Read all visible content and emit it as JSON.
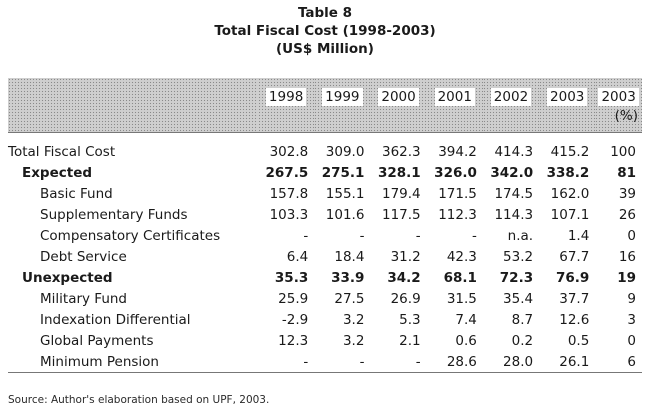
{
  "title": {
    "line1": "Table 8",
    "line2": "Total Fiscal Cost (1998-2003)",
    "line3": "(US$ Million)"
  },
  "columns": [
    "1998",
    "1999",
    "2000",
    "2001",
    "2002",
    "2003",
    "2003"
  ],
  "pct_unit": "(%)",
  "rows": [
    {
      "label": "Total Fiscal Cost",
      "values": [
        "302.8",
        "309.0",
        "362.3",
        "394.2",
        "414.3",
        "415.2",
        "100"
      ]
    },
    {
      "label": "Expected",
      "values": [
        "267.5",
        "275.1",
        "328.1",
        "326.0",
        "342.0",
        "338.2",
        "81"
      ]
    },
    {
      "label": "Basic Fund",
      "values": [
        "157.8",
        "155.1",
        "179.4",
        "171.5",
        "174.5",
        "162.0",
        "39"
      ]
    },
    {
      "label": "Supplementary Funds",
      "values": [
        "103.3",
        "101.6",
        "117.5",
        "112.3",
        "114.3",
        "107.1",
        "26"
      ]
    },
    {
      "label": "Compensatory Certificates",
      "values": [
        "-",
        "-",
        "-",
        "-",
        "n.a.",
        "1.4",
        "0"
      ]
    },
    {
      "label": "Debt Service",
      "values": [
        "6.4",
        "18.4",
        "31.2",
        "42.3",
        "53.2",
        "67.7",
        "16"
      ]
    },
    {
      "label": "Unexpected",
      "values": [
        "35.3",
        "33.9",
        "34.2",
        "68.1",
        "72.3",
        "76.9",
        "19"
      ]
    },
    {
      "label": "Military Fund",
      "values": [
        "25.9",
        "27.5",
        "26.9",
        "31.5",
        "35.4",
        "37.7",
        "9"
      ]
    },
    {
      "label": "Indexation Differential",
      "values": [
        "-2.9",
        "3.2",
        "5.3",
        "7.4",
        "8.7",
        "12.6",
        "3"
      ]
    },
    {
      "label": "Global Payments",
      "values": [
        "12.3",
        "3.2",
        "2.1",
        "0.6",
        "0.2",
        "0.5",
        "0"
      ]
    },
    {
      "label": "Minimum Pension",
      "values": [
        "-",
        "-",
        "-",
        "28.6",
        "28.0",
        "26.1",
        "6"
      ]
    }
  ],
  "source": "Source: Author's elaboration based on UPF, 2003."
}
